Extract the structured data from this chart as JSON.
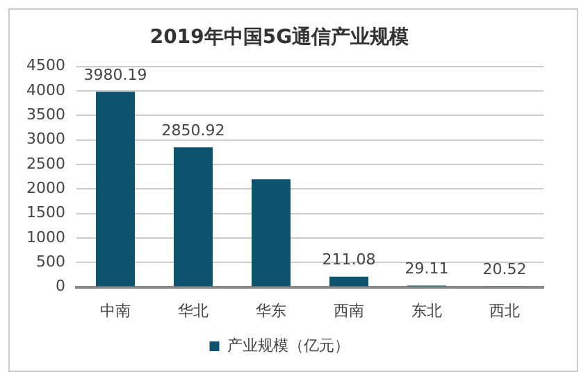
{
  "chart_data": {
    "type": "bar",
    "title": "2019年中国5G通信产业规模",
    "categories": [
      "中南",
      "华北",
      "华东",
      "西南",
      "东北",
      "西北"
    ],
    "series": [
      {
        "name": "产业规模（亿元）",
        "color": "#0d5370",
        "values": [
          3980.19,
          2850.92,
          2200,
          211.08,
          29.11,
          20.52
        ],
        "value_labels": [
          "3980.19",
          "2850.92",
          null,
          "211.08",
          "29.11",
          "20.52"
        ]
      }
    ],
    "ylim": [
      0,
      4500
    ],
    "yticks": [
      0,
      500,
      1000,
      1500,
      2000,
      2500,
      3000,
      3500,
      4000,
      4500
    ],
    "grid": "y",
    "legend": "bottom"
  }
}
